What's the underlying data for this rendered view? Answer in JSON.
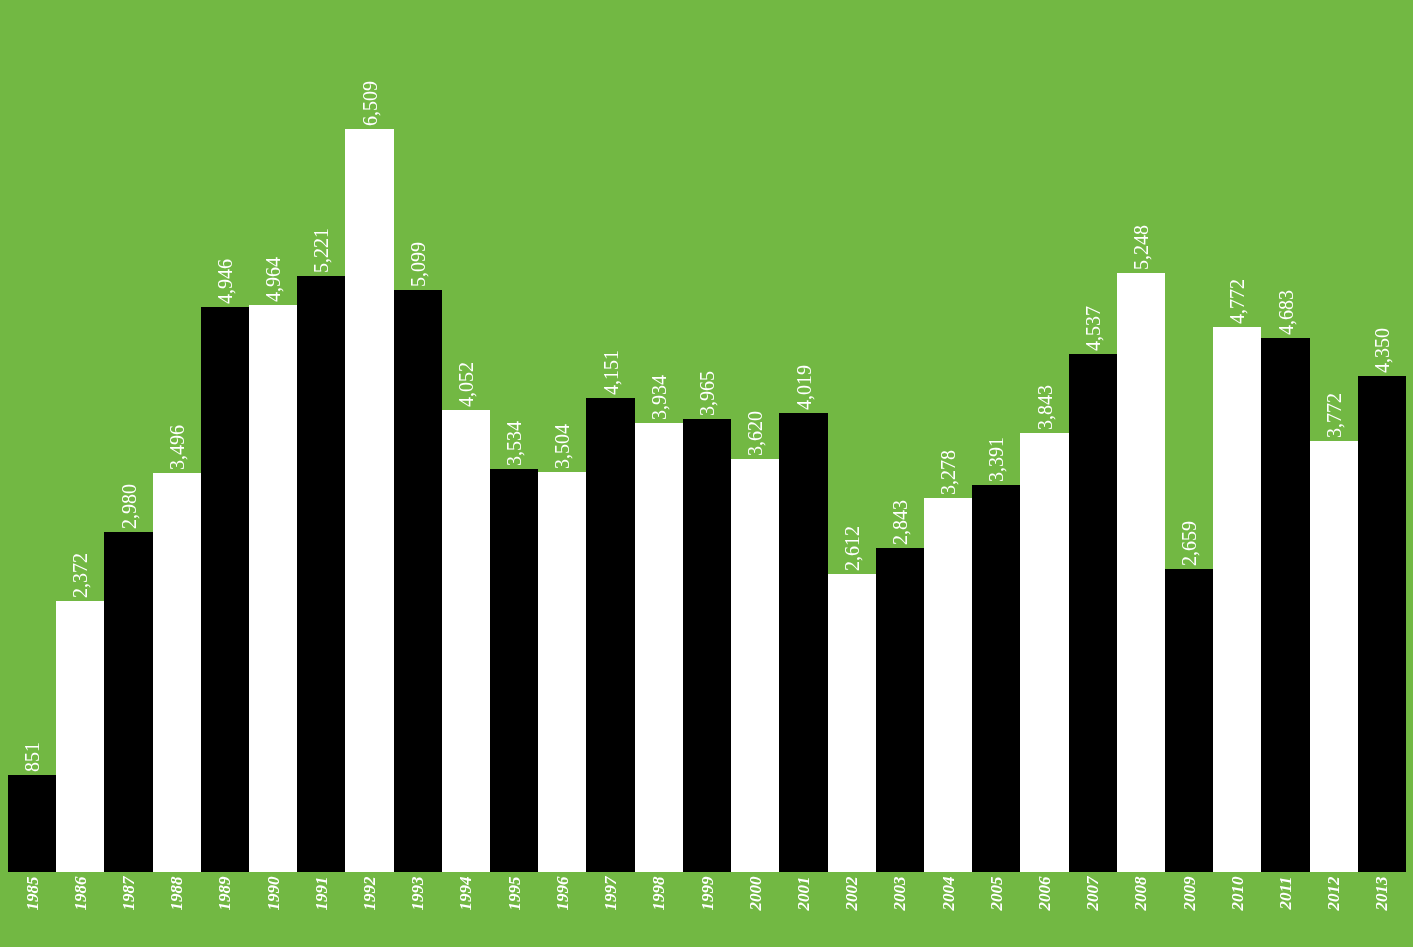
{
  "chart_data": {
    "type": "bar",
    "categories": [
      "1985",
      "1986",
      "1987",
      "1988",
      "1989",
      "1990",
      "1991",
      "1992",
      "1993",
      "1994",
      "1995",
      "1996",
      "1997",
      "1998",
      "1999",
      "2000",
      "2001",
      "2002",
      "2003",
      "2004",
      "2005",
      "2006",
      "2007",
      "2008",
      "2009",
      "2010",
      "2011",
      "2012",
      "2013"
    ],
    "values": [
      851,
      2372,
      2980,
      3496,
      4946,
      4964,
      5221,
      6509,
      5099,
      4052,
      3534,
      3504,
      4151,
      3934,
      3965,
      3620,
      4019,
      2612,
      2843,
      3278,
      3391,
      3843,
      4537,
      5248,
      2659,
      4772,
      4683,
      3772,
      4350
    ],
    "colors": [
      "#000000",
      "#ffffff",
      "#000000",
      "#ffffff",
      "#000000",
      "#ffffff",
      "#000000",
      "#ffffff",
      "#000000",
      "#ffffff",
      "#000000",
      "#ffffff",
      "#000000",
      "#ffffff",
      "#000000",
      "#ffffff",
      "#000000",
      "#ffffff",
      "#000000",
      "#ffffff",
      "#000000",
      "#ffffff",
      "#000000",
      "#ffffff",
      "#000000",
      "#ffffff",
      "#000000",
      "#ffffff",
      "#000000"
    ],
    "value_labels": [
      "851",
      "2,372",
      "2,980",
      "3,496",
      "4,946",
      "4,964",
      "5,221",
      "6,509",
      "5,099",
      "4,052",
      "3,534",
      "3,504",
      "4,151",
      "3,934",
      "3,965",
      "3,620",
      "4,019",
      "2,612",
      "2,843",
      "3,278",
      "3,391",
      "3,843",
      "4,537",
      "5,248",
      "2,659",
      "4,772",
      "4,683",
      "3,772",
      "4,350"
    ],
    "grid": false,
    "legend": false
  }
}
